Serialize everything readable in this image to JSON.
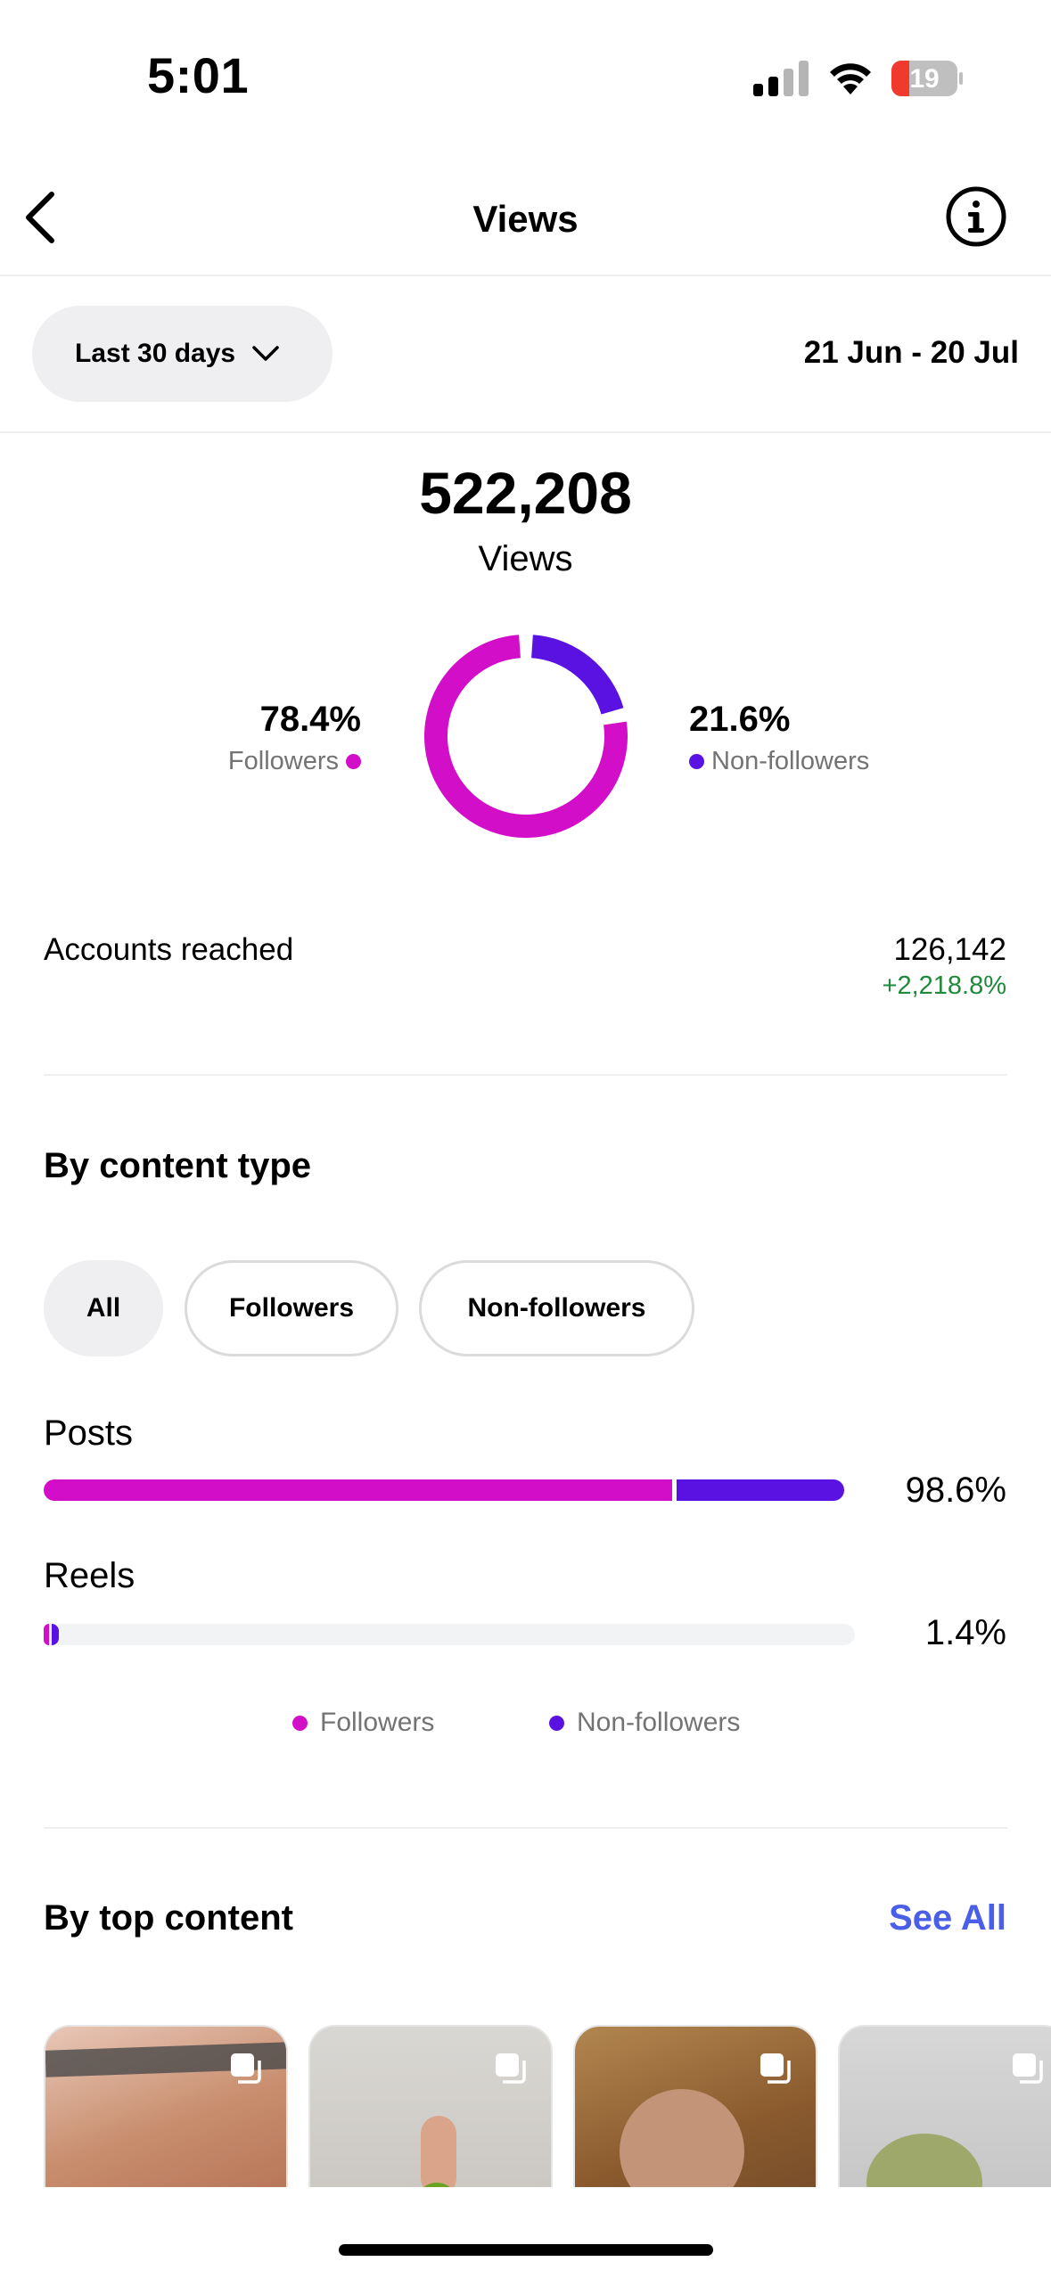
{
  "status_bar": {
    "time": "5:01",
    "battery": "19"
  },
  "nav": {
    "title": "Views"
  },
  "filter": {
    "range_label": "Last 30 days",
    "dates": "21 Jun - 20 Jul"
  },
  "summary": {
    "total": "522,208",
    "label": "Views",
    "followers_pct": "78.4%",
    "followers_label": "Followers",
    "non_followers_pct": "21.6%",
    "non_followers_label": "Non-followers",
    "followers_fraction": 0.784,
    "non_followers_fraction": 0.216
  },
  "accounts": {
    "label": "Accounts reached",
    "value": "126,142",
    "change": "+2,218.8%"
  },
  "content_type": {
    "title": "By content type",
    "tabs": [
      "All",
      "Followers",
      "Non-followers"
    ],
    "rows": [
      {
        "label": "Posts",
        "pct": "98.6%",
        "value": 98.6
      },
      {
        "label": "Reels",
        "pct": "1.4%",
        "value": 1.4
      }
    ],
    "legend": [
      "Followers",
      "Non-followers"
    ]
  },
  "top_content": {
    "title": "By top content",
    "see_all": "See All"
  },
  "colors": {
    "followers": "#d30ec9",
    "non_followers": "#5a12e2",
    "positive": "#1f8a3b",
    "link": "#4a5ee8"
  }
}
